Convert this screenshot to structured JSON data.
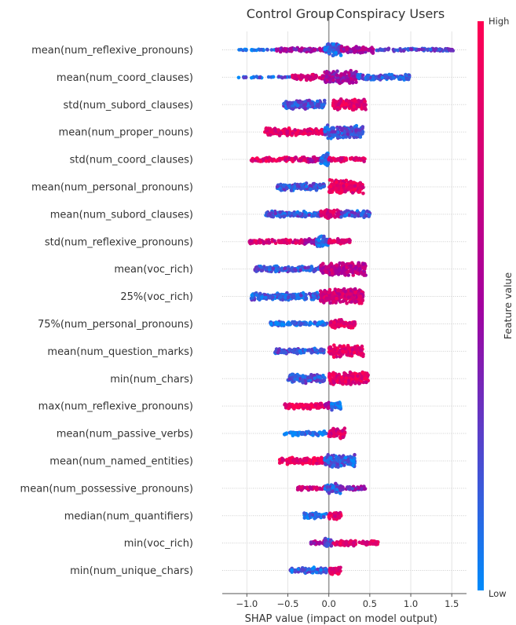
{
  "chart_data": {
    "type": "scatter",
    "subtype": "shap-beeswarm",
    "group_labels": {
      "left": "Control Group",
      "right": "Conspiracy Users"
    },
    "xlabel": "SHAP value (impact on model output)",
    "xlim": [
      -1.3,
      1.68
    ],
    "xticks": [
      -1.0,
      -0.5,
      0.0,
      0.5,
      1.0,
      1.5
    ],
    "xtick_labels": [
      "−1.0",
      "−0.5",
      "0.0",
      "0.5",
      "1.0",
      "1.5"
    ],
    "grid": "horizontal",
    "colorbar": {
      "title": "Feature value",
      "high_label": "High",
      "low_label": "Low",
      "low_color": "#008bfb",
      "high_color": "#ff0052"
    },
    "features": [
      {
        "name": "mean(num_reflexive_pronouns)",
        "xmin": -1.15,
        "xmax": 1.52,
        "low_side": "both",
        "segments": [
          [
            -1.15,
            -0.65,
            0.1,
            1
          ],
          [
            -0.65,
            -0.05,
            0.5,
            3
          ],
          [
            -0.05,
            0.15,
            0.15,
            8
          ],
          [
            0.15,
            0.55,
            0.55,
            5
          ],
          [
            0.55,
            1.52,
            0.25,
            2
          ]
        ]
      },
      {
        "name": "mean(num_coord_clauses)",
        "xmin": -1.13,
        "xmax": 1.0,
        "low_side": "both",
        "segments": [
          [
            -1.13,
            -0.45,
            0.15,
            1
          ],
          [
            -0.45,
            -0.05,
            0.75,
            4
          ],
          [
            -0.05,
            0.35,
            0.5,
            9
          ],
          [
            0.35,
            1.0,
            0.2,
            4
          ]
        ]
      },
      {
        "name": "std(num_subord_clauses)",
        "xmin": -0.55,
        "xmax": 0.45,
        "low_side": "left",
        "segments": [
          [
            -0.55,
            -0.05,
            0.2,
            6
          ],
          [
            0.05,
            0.45,
            0.85,
            8
          ]
        ]
      },
      {
        "name": "mean(num_proper_nouns)",
        "xmin": -0.78,
        "xmax": 0.42,
        "low_side": "right",
        "segments": [
          [
            -0.78,
            -0.05,
            0.85,
            5
          ],
          [
            -0.05,
            0.42,
            0.2,
            9
          ]
        ]
      },
      {
        "name": "std(num_coord_clauses)",
        "xmin": -0.95,
        "xmax": 0.45,
        "low_side": "center",
        "segments": [
          [
            -0.95,
            -0.25,
            0.85,
            3
          ],
          [
            -0.25,
            -0.1,
            0.6,
            4
          ],
          [
            -0.1,
            0.0,
            0.1,
            9
          ],
          [
            0.0,
            0.45,
            0.85,
            3
          ]
        ]
      },
      {
        "name": "mean(num_personal_pronouns)",
        "xmin": -0.63,
        "xmax": 0.42,
        "low_side": "left",
        "segments": [
          [
            -0.63,
            -0.05,
            0.2,
            5
          ],
          [
            0.0,
            0.42,
            0.85,
            9
          ]
        ]
      },
      {
        "name": "mean(num_subord_clauses)",
        "xmin": -0.77,
        "xmax": 0.5,
        "low_side": "both",
        "segments": [
          [
            -0.77,
            -0.1,
            0.2,
            4
          ],
          [
            -0.1,
            0.15,
            0.75,
            6
          ],
          [
            0.15,
            0.5,
            0.2,
            5
          ]
        ]
      },
      {
        "name": "std(num_reflexive_pronouns)",
        "xmin": -0.97,
        "xmax": 0.28,
        "low_side": "center",
        "segments": [
          [
            -0.97,
            -0.3,
            0.8,
            3
          ],
          [
            -0.3,
            -0.15,
            0.55,
            4
          ],
          [
            -0.15,
            0.0,
            0.1,
            9
          ],
          [
            0.0,
            0.28,
            0.85,
            4
          ]
        ]
      },
      {
        "name": "mean(voc_rich)",
        "xmin": -0.9,
        "xmax": 0.45,
        "low_side": "left",
        "segments": [
          [
            -0.9,
            -0.1,
            0.2,
            4
          ],
          [
            -0.1,
            0.45,
            0.65,
            9
          ]
        ]
      },
      {
        "name": "25%(voc_rich)",
        "xmin": -0.95,
        "xmax": 0.42,
        "low_side": "left",
        "segments": [
          [
            -0.95,
            -0.1,
            0.15,
            5
          ],
          [
            -0.1,
            0.42,
            0.75,
            10
          ]
        ]
      },
      {
        "name": "75%(num_personal_pronouns)",
        "xmin": -0.72,
        "xmax": 0.32,
        "low_side": "left",
        "segments": [
          [
            -0.72,
            -0.02,
            0.1,
            3
          ],
          [
            0.02,
            0.32,
            0.85,
            6
          ]
        ]
      },
      {
        "name": "mean(num_question_marks)",
        "xmin": -0.67,
        "xmax": 0.42,
        "low_side": "left",
        "segments": [
          [
            -0.67,
            -0.05,
            0.2,
            4
          ],
          [
            0.0,
            0.42,
            0.85,
            8
          ]
        ]
      },
      {
        "name": "min(num_chars)",
        "xmin": -0.5,
        "xmax": 0.48,
        "low_side": "left",
        "segments": [
          [
            -0.5,
            -0.05,
            0.2,
            6
          ],
          [
            0.0,
            0.48,
            0.85,
            9
          ]
        ]
      },
      {
        "name": "max(num_reflexive_pronouns)",
        "xmin": -0.55,
        "xmax": 0.15,
        "low_side": "right",
        "segments": [
          [
            -0.55,
            -0.05,
            0.9,
            4
          ],
          [
            -0.05,
            0.03,
            0.6,
            6
          ],
          [
            0.03,
            0.15,
            0.05,
            6
          ]
        ]
      },
      {
        "name": "mean(num_passive_verbs)",
        "xmin": -0.55,
        "xmax": 0.2,
        "low_side": "left",
        "segments": [
          [
            -0.55,
            -0.03,
            0.1,
            3
          ],
          [
            0.0,
            0.2,
            0.8,
            7
          ]
        ]
      },
      {
        "name": "mean(num_named_entities)",
        "xmin": -0.6,
        "xmax": 0.32,
        "low_side": "right",
        "segments": [
          [
            -0.6,
            -0.05,
            0.9,
            5
          ],
          [
            -0.05,
            0.32,
            0.15,
            9
          ]
        ]
      },
      {
        "name": "mean(num_possessive_pronouns)",
        "xmin": -0.38,
        "xmax": 0.45,
        "low_side": "both",
        "segments": [
          [
            -0.38,
            -0.05,
            0.75,
            3
          ],
          [
            -0.05,
            0.15,
            0.2,
            7
          ],
          [
            0.15,
            0.45,
            0.4,
            3
          ]
        ]
      },
      {
        "name": "median(num_quantifiers)",
        "xmin": -0.3,
        "xmax": 0.15,
        "low_side": "left",
        "segments": [
          [
            -0.3,
            -0.02,
            0.1,
            4
          ],
          [
            0.0,
            0.15,
            0.85,
            6
          ]
        ]
      },
      {
        "name": "min(voc_rich)",
        "xmin": -0.25,
        "xmax": 0.6,
        "low_side": "center",
        "segments": [
          [
            -0.25,
            -0.05,
            0.55,
            3
          ],
          [
            -0.05,
            0.05,
            0.2,
            7
          ],
          [
            0.05,
            0.6,
            0.85,
            4
          ]
        ]
      },
      {
        "name": "min(num_unique_chars)",
        "xmin": -0.47,
        "xmax": 0.15,
        "low_side": "left",
        "segments": [
          [
            -0.47,
            -0.02,
            0.15,
            4
          ],
          [
            0.0,
            0.15,
            0.85,
            6
          ]
        ]
      }
    ]
  }
}
